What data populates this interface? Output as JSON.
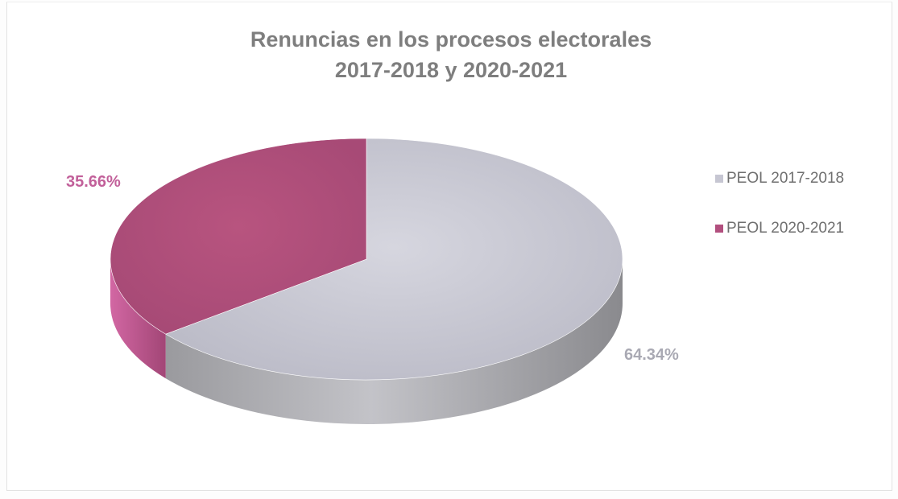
{
  "chart_data": {
    "type": "pie",
    "title_lines": [
      "Renuncias en los procesos electorales",
      "2017-2018 y 2020-2021"
    ],
    "series": [
      {
        "name": "PEOL 2017-2018",
        "value": 64.34,
        "label": "64.34%",
        "color": "#c6c6d2",
        "label_color": "#a9a9b3"
      },
      {
        "name": "PEOL 2020-2021",
        "value": 35.66,
        "label": "35.66%",
        "color": "#b24f7e",
        "label_color": "#c2609a"
      }
    ],
    "legend_position": "right",
    "style": "3d"
  }
}
